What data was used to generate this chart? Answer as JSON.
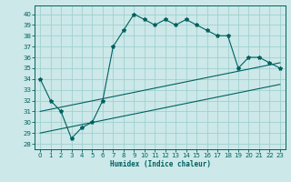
{
  "xlabel": "Humidex (Indice chaleur)",
  "bg_color": "#cce8e8",
  "grid_color": "#99cccc",
  "line_color": "#006060",
  "xlim": [
    -0.5,
    23.5
  ],
  "ylim": [
    27.5,
    40.8
  ],
  "xticks": [
    0,
    1,
    2,
    3,
    4,
    5,
    6,
    7,
    8,
    9,
    10,
    11,
    12,
    13,
    14,
    15,
    16,
    17,
    18,
    19,
    20,
    21,
    22,
    23
  ],
  "yticks": [
    28,
    29,
    30,
    31,
    32,
    33,
    34,
    35,
    36,
    37,
    38,
    39,
    40
  ],
  "main_y": [
    34,
    32,
    31,
    28.5,
    29.5,
    30,
    32,
    37,
    38.5,
    40,
    39.5,
    39,
    39.5,
    39,
    39.5,
    39,
    38.5,
    38,
    38,
    35,
    36,
    36,
    35.5,
    35
  ],
  "upper_y0": 31.0,
  "upper_y1": 35.5,
  "lower_y0": 29.0,
  "lower_y1": 33.5
}
